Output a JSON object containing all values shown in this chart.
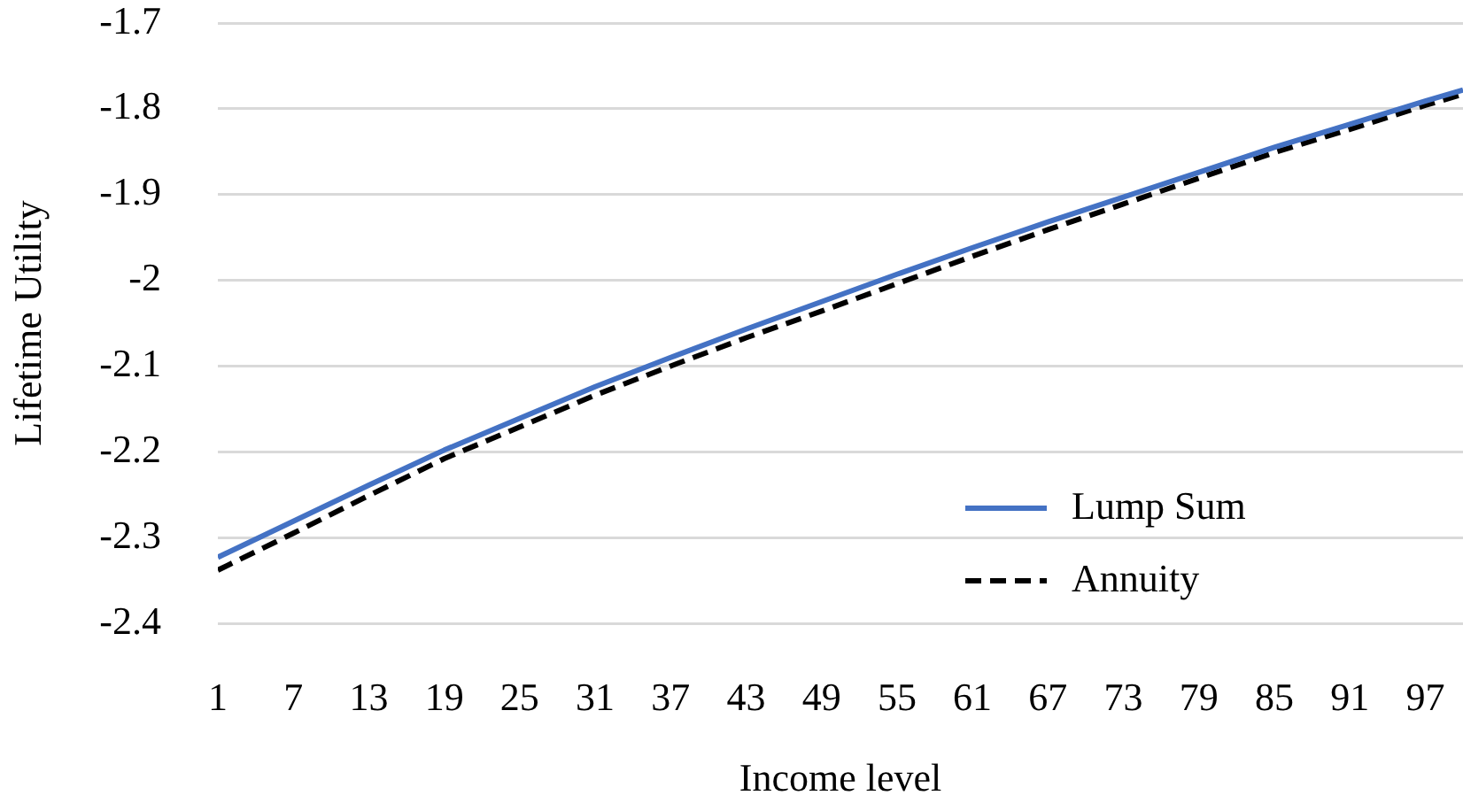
{
  "chart_data": {
    "type": "line",
    "xlabel": "Income level",
    "ylabel": "Lifetime Utility",
    "x": [
      1,
      7,
      13,
      19,
      25,
      31,
      37,
      43,
      49,
      55,
      61,
      67,
      73,
      79,
      85,
      91,
      97,
      100
    ],
    "series": [
      {
        "name": "Lump Sum",
        "color": "#4472c4",
        "line_style": "solid",
        "values": [
          -2.323,
          -2.281,
          -2.239,
          -2.198,
          -2.161,
          -2.124,
          -2.09,
          -2.057,
          -2.025,
          -1.993,
          -1.962,
          -1.932,
          -1.903,
          -1.874,
          -1.845,
          -1.818,
          -1.791,
          -1.778
        ]
      },
      {
        "name": "Annuity",
        "color": "#000000",
        "line_style": "dashed",
        "values": [
          -2.338,
          -2.295,
          -2.251,
          -2.208,
          -2.171,
          -2.134,
          -2.1,
          -2.067,
          -2.036,
          -2.004,
          -1.972,
          -1.941,
          -1.911,
          -1.881,
          -1.851,
          -1.824,
          -1.796,
          -1.783
        ]
      }
    ],
    "xlim": [
      1,
      100
    ],
    "xticks": [
      1,
      7,
      13,
      19,
      25,
      31,
      37,
      43,
      49,
      55,
      61,
      67,
      73,
      79,
      85,
      91,
      97
    ],
    "ylim": [
      -2.4,
      -1.7
    ],
    "yticks": [
      -2.4,
      -2.3,
      -2.2,
      -2.1,
      -2,
      -1.9,
      -1.8,
      -1.7
    ],
    "grid": "y",
    "legend": "bottom right",
    "marker": "none"
  }
}
